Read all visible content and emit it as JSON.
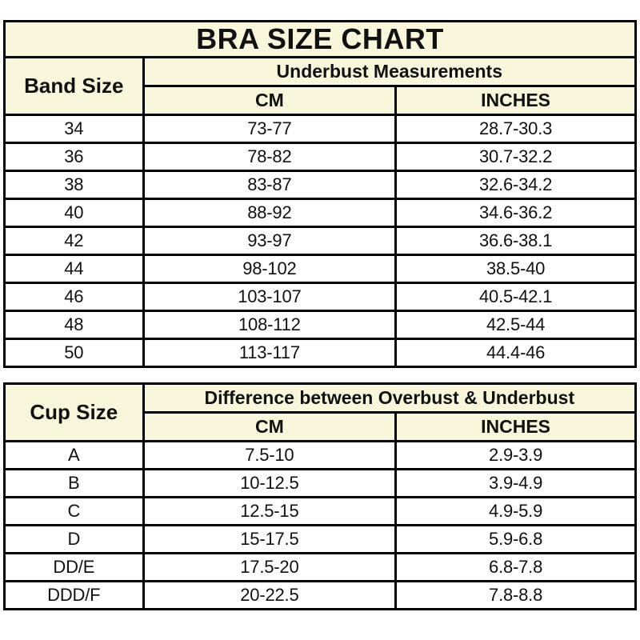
{
  "page": {
    "title": "BRA SIZE CHART"
  },
  "colors": {
    "header_background": "#faf6dc",
    "row_background": "#ffffff",
    "border": "#000000",
    "text": "#111111"
  },
  "band_table": {
    "corner_header": "Band Size",
    "group_header": "Underbust Measurements",
    "col_headers": {
      "cm": "CM",
      "inches": "INCHES"
    },
    "rows": [
      {
        "size": "34",
        "cm": "73-77",
        "inches": "28.7-30.3"
      },
      {
        "size": "36",
        "cm": "78-82",
        "inches": "30.7-32.2"
      },
      {
        "size": "38",
        "cm": "83-87",
        "inches": "32.6-34.2"
      },
      {
        "size": "40",
        "cm": "88-92",
        "inches": "34.6-36.2"
      },
      {
        "size": "42",
        "cm": "93-97",
        "inches": "36.6-38.1"
      },
      {
        "size": "44",
        "cm": "98-102",
        "inches": "38.5-40"
      },
      {
        "size": "46",
        "cm": "103-107",
        "inches": "40.5-42.1"
      },
      {
        "size": "48",
        "cm": "108-112",
        "inches": "42.5-44"
      },
      {
        "size": "50",
        "cm": "113-117",
        "inches": "44.4-46"
      }
    ]
  },
  "cup_table": {
    "corner_header": "Cup Size",
    "group_header": "Difference between Overbust & Underbust",
    "col_headers": {
      "cm": "CM",
      "inches": "INCHES"
    },
    "rows": [
      {
        "size": "A",
        "cm": "7.5-10",
        "inches": "2.9-3.9"
      },
      {
        "size": "B",
        "cm": "10-12.5",
        "inches": "3.9-4.9"
      },
      {
        "size": "C",
        "cm": "12.5-15",
        "inches": "4.9-5.9"
      },
      {
        "size": "D",
        "cm": "15-17.5",
        "inches": "5.9-6.8"
      },
      {
        "size": "DD/E",
        "cm": "17.5-20",
        "inches": "6.8-7.8"
      },
      {
        "size": "DDD/F",
        "cm": "20-22.5",
        "inches": "7.8-8.8"
      }
    ]
  }
}
